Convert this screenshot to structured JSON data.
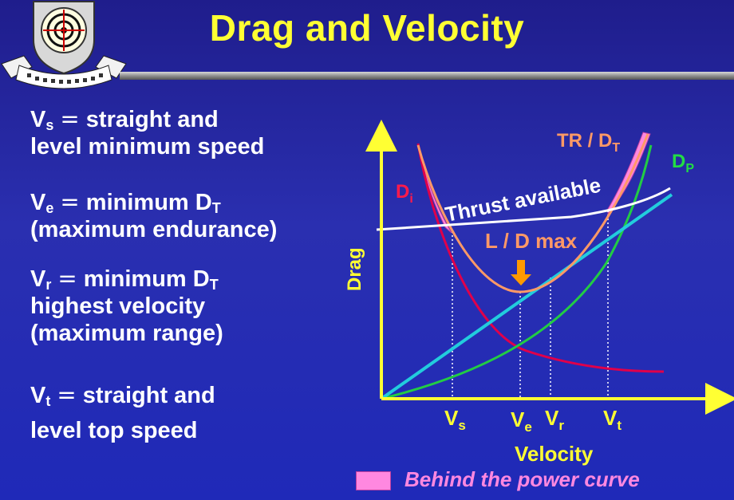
{
  "title": "Drag and Velocity",
  "definitions": {
    "vs": {
      "symbol": "V",
      "sub": "s",
      "op": "=",
      "text": "straight and",
      "line2": "level minimum speed"
    },
    "ve": {
      "symbol": "V",
      "sub": "e",
      "op": "=",
      "text": "minimum D",
      "text_sub": "T",
      "line2": "(maximum endurance)"
    },
    "vr": {
      "symbol": "V",
      "sub": "r",
      "op": "=",
      "text": "minimum D",
      "text_sub": "T",
      "line2": "highest velocity",
      "line3": "(maximum range)"
    },
    "vt": {
      "symbol": "V",
      "sub": "t",
      "op": "=",
      "text": "straight and",
      "line2": "level top speed"
    }
  },
  "chart": {
    "y_axis_label": "Drag",
    "x_axis_label": "Velocity",
    "curve_labels": {
      "di": "D",
      "di_sub": "i",
      "dp": "D",
      "dp_sub": "P",
      "tr": "TR / D",
      "tr_sub": "T",
      "thrust": "Thrust available",
      "ld": "L / D max"
    },
    "tick_labels": {
      "vs": "V",
      "vs_sub": "s",
      "ve": "V",
      "ve_sub": "e",
      "vr": "V",
      "vr_sub": "r",
      "vt": "V",
      "vt_sub": "t"
    },
    "colors": {
      "induced": "#e0004a",
      "parasite": "#22cc44",
      "total": "#ff9966",
      "thrust": "#ffffff",
      "tangent": "#22ccdd",
      "axis": "#ffff33",
      "label_yellow": "#ffff33",
      "label_orange": "#ff9966",
      "behind": "#ff88e0"
    }
  },
  "legend": {
    "label": "Behind the power curve"
  }
}
